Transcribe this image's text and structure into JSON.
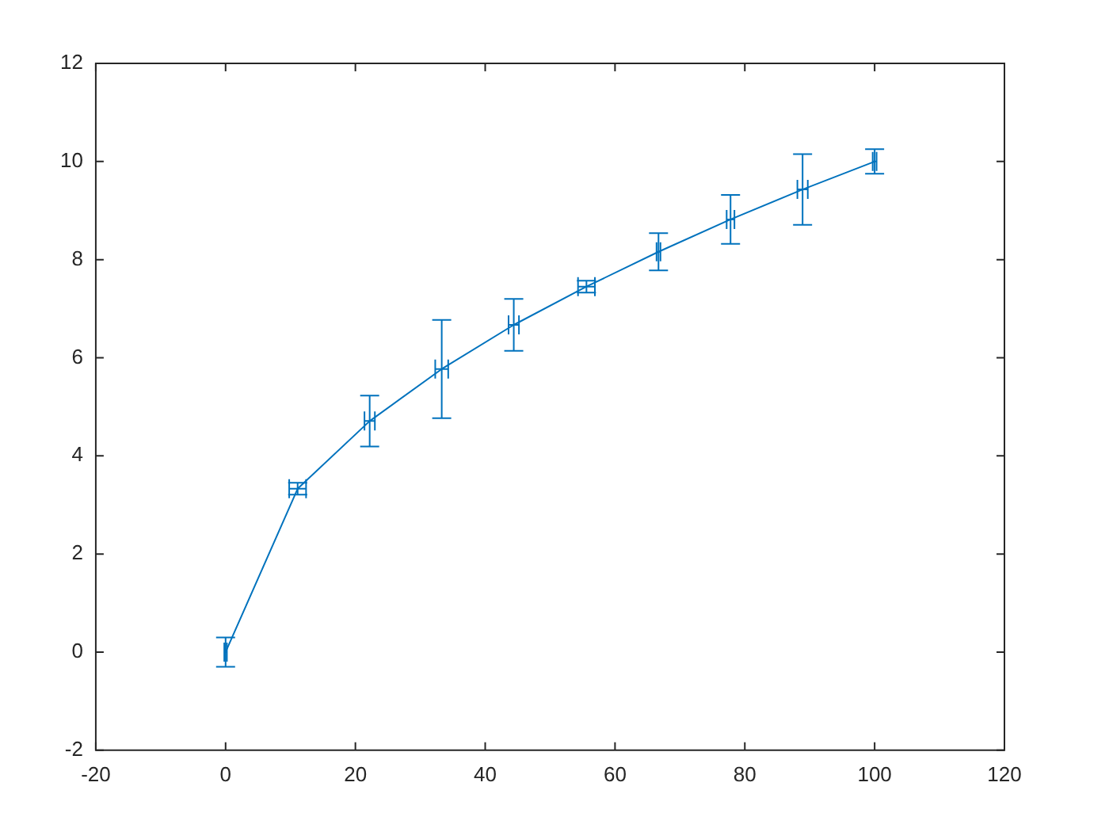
{
  "chart_data": {
    "type": "line",
    "x": [
      0,
      11.1,
      22.2,
      33.3,
      44.4,
      55.6,
      66.7,
      77.8,
      88.9,
      100
    ],
    "series": [
      {
        "color": "#0072bd",
        "values": [
          0,
          3.33,
          4.71,
          5.77,
          6.67,
          7.45,
          8.16,
          8.82,
          9.43,
          10
        ],
        "errors": [
          0.3,
          0.12,
          0.52,
          1.0,
          0.53,
          0.12,
          0.38,
          0.5,
          0.72,
          0.25
        ],
        "xerrors": [
          0.2,
          1.3,
          0.8,
          1.0,
          0.8,
          1.3,
          0.3,
          0.6,
          0.8,
          0.3
        ]
      }
    ],
    "xlim": [
      -20,
      120
    ],
    "xticks": [
      -20,
      0,
      20,
      40,
      60,
      80,
      100,
      120
    ],
    "ylim": [
      -2,
      12
    ],
    "yticks": [
      -2,
      0,
      2,
      4,
      6,
      8,
      10,
      12
    ],
    "grid": false,
    "legend": false,
    "line_style": "solid"
  }
}
